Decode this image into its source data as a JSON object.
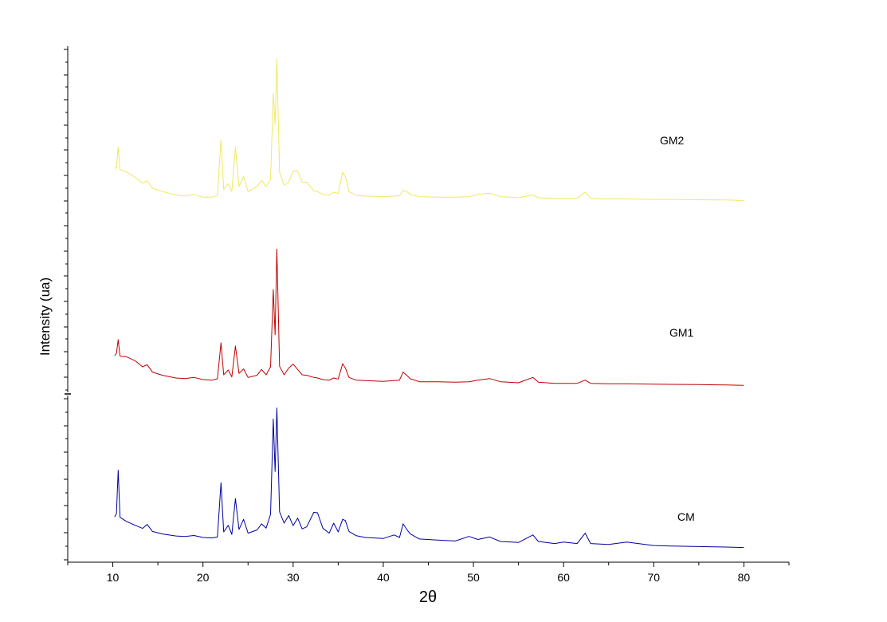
{
  "chart_data": {
    "type": "line",
    "title": "",
    "xlabel": "2θ",
    "ylabel": "Intensity (ua)",
    "xlim": [
      5,
      85
    ],
    "x_ticks": [
      10,
      20,
      30,
      40,
      50,
      60,
      70,
      80
    ],
    "x_tick_labels": [
      "10",
      "20",
      "30",
      "40",
      "50",
      "60",
      "70",
      "80"
    ],
    "grid": false,
    "legend": "none (series labelled inline)",
    "y_scale": "arbitrary units, stacked traces",
    "series": [
      {
        "name": "CM",
        "color": "#0000a0",
        "points": [
          [
            10.2,
            1.2
          ],
          [
            10.4,
            1.32
          ],
          [
            10.6,
            3.05
          ],
          [
            10.8,
            1.18
          ],
          [
            11.5,
            1.02
          ],
          [
            12.5,
            0.86
          ],
          [
            13.3,
            0.74
          ],
          [
            13.8,
            0.9
          ],
          [
            14.4,
            0.62
          ],
          [
            15.5,
            0.52
          ],
          [
            17.0,
            0.44
          ],
          [
            18.0,
            0.42
          ],
          [
            19.0,
            0.46
          ],
          [
            20.0,
            0.38
          ],
          [
            21.0,
            0.36
          ],
          [
            21.6,
            0.4
          ],
          [
            22.0,
            2.55
          ],
          [
            22.3,
            0.6
          ],
          [
            22.8,
            0.86
          ],
          [
            23.2,
            0.5
          ],
          [
            23.6,
            1.92
          ],
          [
            24.0,
            0.7
          ],
          [
            24.5,
            1.1
          ],
          [
            25.0,
            0.55
          ],
          [
            26.0,
            0.68
          ],
          [
            26.5,
            0.92
          ],
          [
            27.0,
            0.75
          ],
          [
            27.5,
            1.3
          ],
          [
            27.8,
            5.08
          ],
          [
            28.0,
            3.0
          ],
          [
            28.2,
            5.52
          ],
          [
            28.5,
            1.4
          ],
          [
            29.0,
            0.95
          ],
          [
            29.5,
            1.25
          ],
          [
            30.0,
            0.85
          ],
          [
            30.5,
            1.15
          ],
          [
            31.0,
            0.72
          ],
          [
            31.5,
            0.8
          ],
          [
            32.3,
            1.38
          ],
          [
            32.7,
            1.36
          ],
          [
            33.3,
            0.75
          ],
          [
            34.0,
            0.55
          ],
          [
            34.5,
            0.95
          ],
          [
            35.0,
            0.6
          ],
          [
            35.5,
            1.1
          ],
          [
            35.8,
            1.05
          ],
          [
            36.2,
            0.62
          ],
          [
            37.0,
            0.45
          ],
          [
            38.0,
            0.38
          ],
          [
            40.0,
            0.34
          ],
          [
            41.2,
            0.48
          ],
          [
            41.8,
            0.38
          ],
          [
            42.2,
            0.92
          ],
          [
            42.6,
            0.7
          ],
          [
            43.0,
            0.52
          ],
          [
            44.0,
            0.32
          ],
          [
            46.0,
            0.28
          ],
          [
            48.0,
            0.24
          ],
          [
            49.5,
            0.42
          ],
          [
            50.5,
            0.3
          ],
          [
            51.8,
            0.4
          ],
          [
            53.0,
            0.22
          ],
          [
            55.0,
            0.18
          ],
          [
            56.6,
            0.48
          ],
          [
            57.2,
            0.22
          ],
          [
            59.0,
            0.14
          ],
          [
            60.0,
            0.2
          ],
          [
            61.5,
            0.14
          ],
          [
            62.4,
            0.55
          ],
          [
            63.0,
            0.14
          ],
          [
            65.0,
            0.1
          ],
          [
            67.0,
            0.2
          ],
          [
            70.0,
            0.06
          ],
          [
            72.0,
            0.04
          ],
          [
            75.0,
            0.02
          ],
          [
            78.0,
            0.0
          ],
          [
            80.0,
            -0.02
          ]
        ]
      },
      {
        "name": "GM1",
        "color": "#c00000",
        "points": [
          [
            10.2,
            1.02
          ],
          [
            10.4,
            1.1
          ],
          [
            10.6,
            1.62
          ],
          [
            10.8,
            1.0
          ],
          [
            11.5,
            0.98
          ],
          [
            12.5,
            0.82
          ],
          [
            13.3,
            0.6
          ],
          [
            13.8,
            0.68
          ],
          [
            14.4,
            0.4
          ],
          [
            15.5,
            0.28
          ],
          [
            17.0,
            0.18
          ],
          [
            18.0,
            0.16
          ],
          [
            19.0,
            0.2
          ],
          [
            20.0,
            0.12
          ],
          [
            21.0,
            0.1
          ],
          [
            21.6,
            0.15
          ],
          [
            22.0,
            1.5
          ],
          [
            22.3,
            0.3
          ],
          [
            22.8,
            0.48
          ],
          [
            23.2,
            0.22
          ],
          [
            23.6,
            1.38
          ],
          [
            24.0,
            0.35
          ],
          [
            24.5,
            0.52
          ],
          [
            25.0,
            0.2
          ],
          [
            26.0,
            0.28
          ],
          [
            26.5,
            0.5
          ],
          [
            27.0,
            0.3
          ],
          [
            27.5,
            0.6
          ],
          [
            27.8,
            3.5
          ],
          [
            28.0,
            1.8
          ],
          [
            28.2,
            5.02
          ],
          [
            28.5,
            0.62
          ],
          [
            29.0,
            0.3
          ],
          [
            29.5,
            0.55
          ],
          [
            30.0,
            0.7
          ],
          [
            30.5,
            0.5
          ],
          [
            31.0,
            0.3
          ],
          [
            31.5,
            0.28
          ],
          [
            32.3,
            0.2
          ],
          [
            32.7,
            0.18
          ],
          [
            33.3,
            0.12
          ],
          [
            34.0,
            0.1
          ],
          [
            34.5,
            0.18
          ],
          [
            35.0,
            0.14
          ],
          [
            35.5,
            0.72
          ],
          [
            35.8,
            0.55
          ],
          [
            36.2,
            0.2
          ],
          [
            37.0,
            0.1
          ],
          [
            38.0,
            0.08
          ],
          [
            40.0,
            0.05
          ],
          [
            41.2,
            0.08
          ],
          [
            41.8,
            0.1
          ],
          [
            42.2,
            0.4
          ],
          [
            42.6,
            0.28
          ],
          [
            43.0,
            0.15
          ],
          [
            44.0,
            0.04
          ],
          [
            46.0,
            0.04
          ],
          [
            48.0,
            0.02
          ],
          [
            49.5,
            0.04
          ],
          [
            50.5,
            0.1
          ],
          [
            51.8,
            0.16
          ],
          [
            53.0,
            0.04
          ],
          [
            55.0,
            0.0
          ],
          [
            56.6,
            0.2
          ],
          [
            57.2,
            0.02
          ],
          [
            59.0,
            -0.02
          ],
          [
            60.0,
            -0.02
          ],
          [
            61.5,
            -0.02
          ],
          [
            62.4,
            0.1
          ],
          [
            63.0,
            -0.02
          ],
          [
            65.0,
            -0.04
          ],
          [
            67.0,
            -0.04
          ],
          [
            70.0,
            -0.05
          ],
          [
            72.0,
            -0.06
          ],
          [
            75.0,
            -0.07
          ],
          [
            78.0,
            -0.08
          ],
          [
            80.0,
            -0.1
          ]
        ]
      },
      {
        "name": "GM2",
        "color": "#f0e860",
        "points": [
          [
            10.2,
            1.05
          ],
          [
            10.4,
            1.05
          ],
          [
            10.6,
            1.8
          ],
          [
            10.8,
            1.0
          ],
          [
            11.5,
            0.92
          ],
          [
            12.5,
            0.72
          ],
          [
            13.3,
            0.52
          ],
          [
            13.8,
            0.6
          ],
          [
            14.4,
            0.34
          ],
          [
            15.5,
            0.22
          ],
          [
            17.0,
            0.1
          ],
          [
            18.0,
            0.06
          ],
          [
            19.0,
            0.12
          ],
          [
            20.0,
            0.02
          ],
          [
            21.0,
            0.02
          ],
          [
            21.6,
            0.08
          ],
          [
            22.0,
            2.05
          ],
          [
            22.3,
            0.3
          ],
          [
            22.8,
            0.5
          ],
          [
            23.2,
            0.22
          ],
          [
            23.6,
            1.8
          ],
          [
            24.0,
            0.4
          ],
          [
            24.5,
            0.75
          ],
          [
            25.0,
            0.22
          ],
          [
            26.0,
            0.4
          ],
          [
            26.5,
            0.62
          ],
          [
            27.0,
            0.4
          ],
          [
            27.5,
            0.65
          ],
          [
            27.8,
            3.7
          ],
          [
            28.0,
            2.6
          ],
          [
            28.2,
            4.9
          ],
          [
            28.5,
            0.9
          ],
          [
            29.0,
            0.45
          ],
          [
            29.5,
            0.55
          ],
          [
            30.0,
            0.95
          ],
          [
            30.5,
            0.95
          ],
          [
            31.0,
            0.55
          ],
          [
            31.5,
            0.55
          ],
          [
            32.3,
            0.25
          ],
          [
            32.7,
            0.22
          ],
          [
            33.3,
            0.12
          ],
          [
            34.0,
            0.1
          ],
          [
            34.5,
            0.2
          ],
          [
            35.0,
            0.15
          ],
          [
            35.5,
            0.9
          ],
          [
            35.8,
            0.75
          ],
          [
            36.2,
            0.22
          ],
          [
            37.0,
            0.08
          ],
          [
            38.0,
            0.06
          ],
          [
            40.0,
            0.04
          ],
          [
            41.2,
            0.06
          ],
          [
            41.8,
            0.08
          ],
          [
            42.2,
            0.26
          ],
          [
            42.6,
            0.22
          ],
          [
            43.0,
            0.12
          ],
          [
            44.0,
            0.04
          ],
          [
            46.0,
            0.02
          ],
          [
            48.0,
            0.02
          ],
          [
            49.5,
            0.04
          ],
          [
            50.5,
            0.12
          ],
          [
            51.8,
            0.16
          ],
          [
            53.0,
            0.04
          ],
          [
            55.0,
            0.0
          ],
          [
            56.6,
            0.1
          ],
          [
            57.2,
            0.0
          ],
          [
            59.0,
            -0.02
          ],
          [
            60.0,
            -0.02
          ],
          [
            61.5,
            -0.02
          ],
          [
            62.4,
            0.2
          ],
          [
            63.0,
            -0.02
          ],
          [
            65.0,
            -0.04
          ],
          [
            67.0,
            -0.04
          ],
          [
            70.0,
            -0.06
          ],
          [
            72.0,
            -0.06
          ],
          [
            75.0,
            -0.07
          ],
          [
            78.0,
            -0.08
          ],
          [
            80.0,
            -0.1
          ]
        ]
      }
    ]
  }
}
